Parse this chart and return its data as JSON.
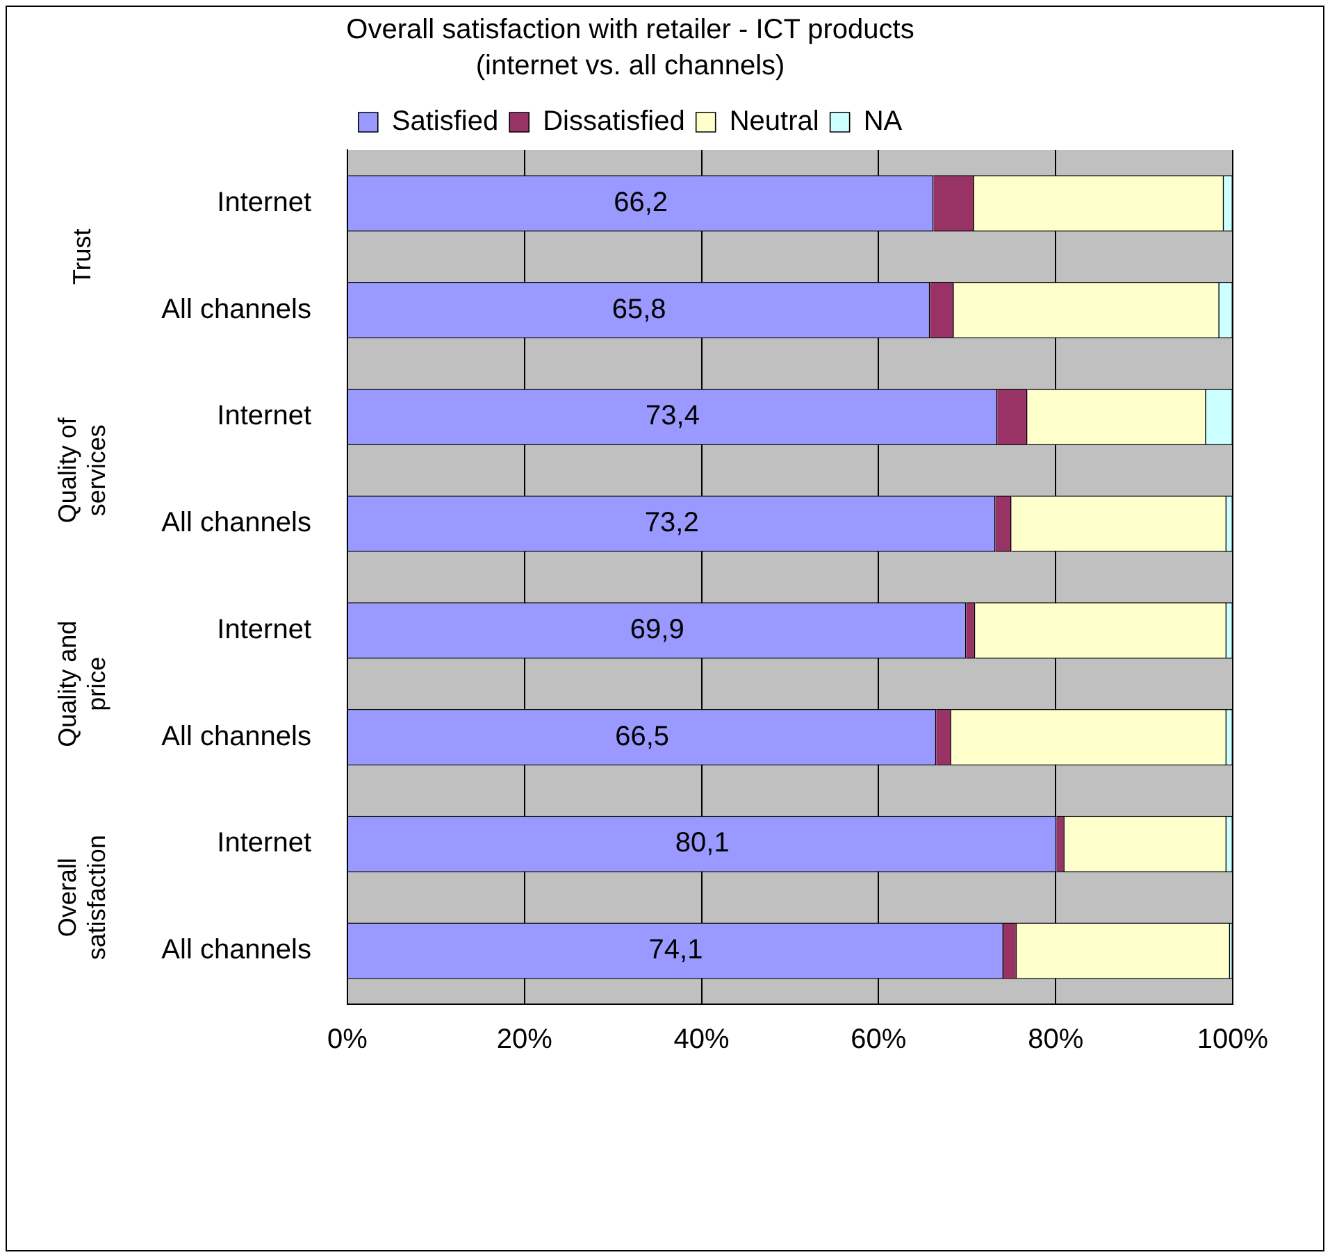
{
  "chart_data": {
    "type": "bar",
    "orientation": "horizontal",
    "stacked": true,
    "title": "Overall satisfaction with retailer - ICT products",
    "subtitle": "(internet vs. all channels)",
    "categories": [
      "Internet",
      "All channels",
      "Internet",
      "All channels",
      "Internet",
      "All channels",
      "Internet",
      "All channels"
    ],
    "annotations": [
      "Trust",
      "Quality of services",
      "Quality and price",
      "Overall satisfaction"
    ],
    "series": [
      {
        "name": "Satisfied",
        "color": "#9999ff",
        "values": [
          66.2,
          65.8,
          73.4,
          73.2,
          69.9,
          66.5,
          80.1,
          74.1
        ],
        "value_labels": [
          "66,2",
          "65,8",
          "73,4",
          "73,2",
          "69,9",
          "66,5",
          "80,1",
          "74,1"
        ]
      },
      {
        "name": "Dissatisfied",
        "color": "#993366",
        "values": [
          4.6,
          2.7,
          3.4,
          1.8,
          1.0,
          1.7,
          0.9,
          1.5
        ]
      },
      {
        "name": "Neutral",
        "color": "#ffffcc",
        "values": [
          28.2,
          30.0,
          20.2,
          24.3,
          28.4,
          31.1,
          18.3,
          24.1
        ]
      },
      {
        "name": "NA",
        "color": "#ccffff",
        "values": [
          1.0,
          1.5,
          3.0,
          0.7,
          0.7,
          0.7,
          0.7,
          0.3
        ]
      }
    ],
    "xlim": [
      0,
      100
    ],
    "xticks": [
      {
        "value": 0,
        "label": "0%"
      },
      {
        "value": 20,
        "label": "20%"
      },
      {
        "value": 40,
        "label": "40%"
      },
      {
        "value": 60,
        "label": "60%"
      },
      {
        "value": 80,
        "label": "80%"
      },
      {
        "value": 100,
        "label": "100%"
      }
    ],
    "grid": "x",
    "legend": "top"
  }
}
